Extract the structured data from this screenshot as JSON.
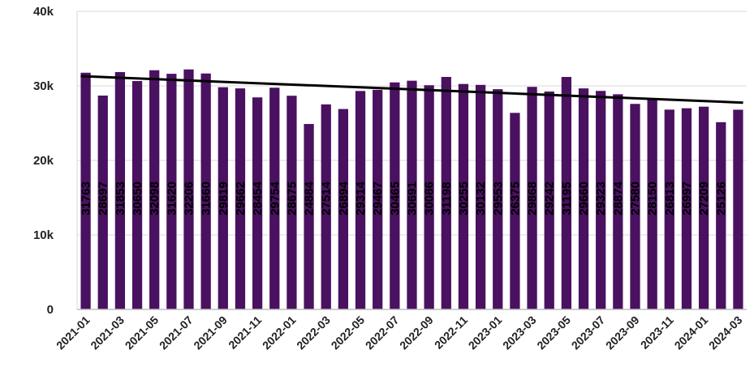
{
  "chart_data": {
    "type": "bar",
    "title": "",
    "xlabel": "",
    "ylabel": "",
    "ylim": [
      0,
      40000
    ],
    "y_ticks": [
      {
        "value": 0,
        "label": "0"
      },
      {
        "value": 10000,
        "label": "10k"
      },
      {
        "value": 20000,
        "label": "20k"
      },
      {
        "value": 30000,
        "label": "30k"
      },
      {
        "value": 40000,
        "label": "40k"
      }
    ],
    "categories": [
      "2021-01",
      "2021-02",
      "2021-03",
      "2021-04",
      "2021-05",
      "2021-06",
      "2021-07",
      "2021-08",
      "2021-09",
      "2021-10",
      "2021-11",
      "2021-12",
      "2022-01",
      "2022-02",
      "2022-03",
      "2022-04",
      "2022-05",
      "2022-06",
      "2022-07",
      "2022-08",
      "2022-09",
      "2022-10",
      "2022-11",
      "2022-12",
      "2023-01",
      "2023-02",
      "2023-03",
      "2023-04",
      "2023-05",
      "2023-06",
      "2023-07",
      "2023-08",
      "2023-09",
      "2023-10",
      "2023-11",
      "2023-12",
      "2024-01",
      "2024-02",
      "2024-03"
    ],
    "x_tick_labels": [
      "2021-01",
      "2021-03",
      "2021-05",
      "2021-07",
      "2021-09",
      "2021-11",
      "2022-01",
      "2022-03",
      "2022-05",
      "2022-07",
      "2022-09",
      "2022-11",
      "2023-01",
      "2023-03",
      "2023-05",
      "2023-07",
      "2023-09",
      "2023-11",
      "2024-01",
      "2024-03"
    ],
    "values": [
      31763,
      28697,
      31853,
      30650,
      32098,
      31620,
      32206,
      31660,
      29819,
      29662,
      28454,
      29754,
      28675,
      24884,
      27514,
      26894,
      29314,
      29467,
      30465,
      30691,
      30086,
      31198,
      30255,
      30132,
      29553,
      26375,
      29868,
      29242,
      31195,
      29660,
      29323,
      28874,
      27580,
      28150,
      26813,
      26997,
      27209,
      25126,
      26800
    ],
    "data_labels": [
      "31763",
      "28697",
      "31853",
      "30650",
      "32098",
      "31620",
      "32206",
      "31660",
      "29819",
      "29662",
      "28454",
      "29754",
      "28675",
      "24884",
      "27514",
      "26894",
      "29314",
      "29467",
      "30465",
      "30691",
      "30086",
      "31198",
      "30255",
      "30132",
      "29553",
      "26375",
      "29868",
      "29242",
      "31195",
      "29660",
      "29323",
      "28874",
      "27580",
      "28150",
      "26813",
      "26997",
      "27209",
      "25126",
      ""
    ],
    "trendline": {
      "start": 31300,
      "end": 27750
    },
    "grid": true,
    "legend": "none",
    "colors": {
      "bar": "#4a1160",
      "trend": "#000000",
      "grid": "#d9d9d9",
      "axis": "#bfbfbf"
    }
  }
}
